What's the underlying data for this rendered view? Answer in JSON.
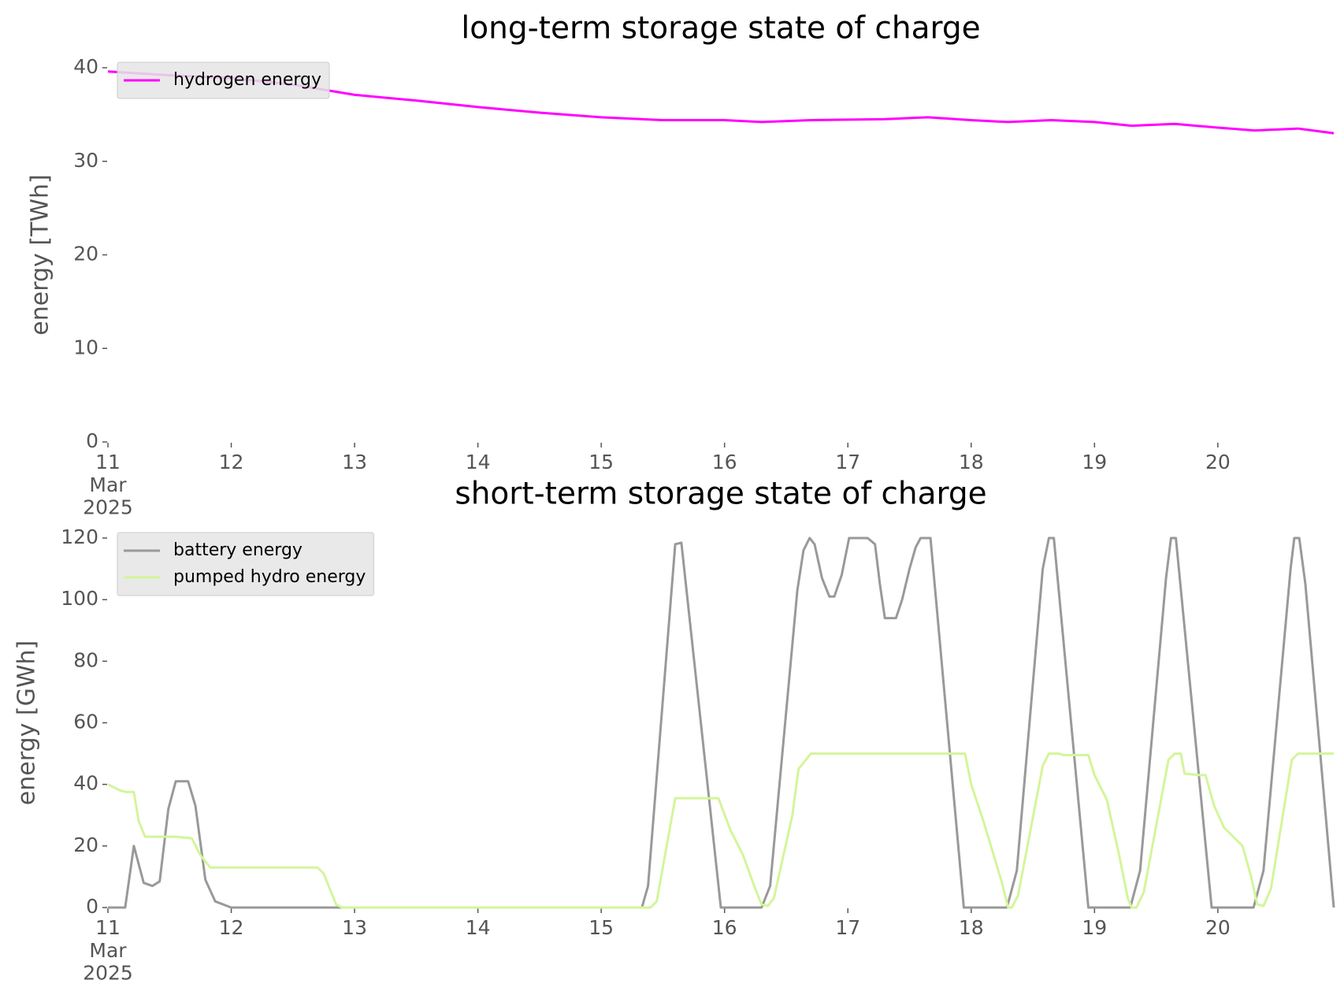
{
  "chart_data": [
    {
      "type": "line",
      "title": "long-term storage state of charge",
      "ylabel": "energy [TWh]",
      "xlim": [
        11,
        20.94
      ],
      "xticks": [
        {
          "value": 11,
          "label": "11\nMar\n2025"
        },
        12,
        13,
        14,
        15,
        16,
        17,
        18,
        19,
        20
      ],
      "ylim": [
        0,
        40
      ],
      "yticks": [
        0,
        10,
        20,
        30,
        40
      ],
      "grid": false,
      "legend": "upper left",
      "series": [
        {
          "name": "hydrogen energy",
          "color": "#ff00ff",
          "x": [
            11,
            11.5,
            12,
            12.5,
            13,
            13.5,
            14,
            14.5,
            15,
            15.5,
            16,
            16.3,
            16.7,
            17.3,
            17.65,
            18,
            18.3,
            18.65,
            19,
            19.3,
            19.65,
            20,
            20.3,
            20.65,
            20.94
          ],
          "values": [
            39.6,
            39.2,
            38.9,
            38.2,
            37.1,
            36.5,
            35.8,
            35.2,
            34.7,
            34.4,
            34.4,
            34.2,
            34.4,
            34.5,
            34.7,
            34.4,
            34.2,
            34.4,
            34.2,
            33.8,
            34.0,
            33.6,
            33.3,
            33.5,
            33.0
          ]
        }
      ]
    },
    {
      "type": "line",
      "title": "short-term storage state of charge",
      "ylabel": "energy [GWh]",
      "xlim": [
        11,
        20.94
      ],
      "xticks": [
        {
          "value": 11,
          "label": "11\nMar\n2025"
        },
        12,
        13,
        14,
        15,
        16,
        17,
        18,
        19,
        20
      ],
      "ylim": [
        0,
        120
      ],
      "yticks": [
        0,
        20,
        40,
        60,
        80,
        100,
        120
      ],
      "grid": false,
      "legend": "upper left",
      "series": [
        {
          "name": "battery energy",
          "color": "#999999",
          "x": [
            11,
            11.14,
            11.21,
            11.29,
            11.36,
            11.42,
            11.49,
            11.55,
            11.65,
            11.71,
            11.79,
            11.87,
            12,
            15.33,
            15.38,
            15.6,
            15.65,
            15.97,
            16.3,
            16.37,
            16.59,
            16.64,
            16.69,
            16.73,
            16.79,
            16.85,
            16.89,
            16.95,
            17.01,
            17.16,
            17.22,
            17.26,
            17.3,
            17.39,
            17.44,
            17.5,
            17.55,
            17.59,
            17.67,
            17.94,
            18.29,
            18.37,
            18.58,
            18.63,
            18.67,
            18.95,
            19.29,
            19.37,
            19.58,
            19.62,
            19.66,
            19.95,
            20.29,
            20.37,
            20.59,
            20.62,
            20.66,
            20.71,
            20.94
          ],
          "values": [
            0,
            0,
            20,
            8,
            7,
            8.5,
            32,
            41,
            41,
            33,
            9,
            2,
            0,
            0,
            7,
            118,
            118.5,
            0,
            0,
            7,
            103,
            116,
            120,
            118,
            107,
            101,
            101,
            108,
            120,
            120,
            118,
            105,
            94,
            94,
            100,
            110,
            117,
            120,
            120,
            0,
            0,
            12,
            110,
            120,
            120,
            0,
            0,
            12,
            107,
            120,
            120,
            0,
            0,
            12,
            110,
            120,
            120,
            105,
            0
          ]
        },
        {
          "name": "pumped hydro energy",
          "color": "#d4f59a",
          "x": [
            11,
            11.1,
            11.15,
            11.21,
            11.25,
            11.3,
            11.55,
            11.68,
            11.75,
            11.83,
            12.7,
            12.75,
            12.85,
            12.9,
            15.4,
            15.45,
            15.6,
            15.95,
            16.05,
            16.15,
            16.25,
            16.3,
            16.35,
            16.4,
            16.55,
            16.6,
            16.7,
            17.95,
            18,
            18.1,
            18.25,
            18.3,
            18.33,
            18.38,
            18.58,
            18.63,
            18.71,
            18.75,
            18.95,
            19,
            19.1,
            19.2,
            19.27,
            19.3,
            19.34,
            19.4,
            19.6,
            19.65,
            19.7,
            19.73,
            19.85,
            19.9,
            19.97,
            20.05,
            20.2,
            20.27,
            20.32,
            20.37,
            20.43,
            20.6,
            20.65,
            20.94
          ],
          "values": [
            40,
            38,
            37.5,
            37.5,
            28,
            23,
            23,
            22.5,
            17,
            13,
            13,
            11,
            1,
            0,
            0,
            2,
            35.5,
            35.5,
            25,
            17,
            6,
            1,
            0.5,
            3,
            30,
            45,
            50,
            50,
            40,
            28,
            8,
            0,
            0,
            4,
            46,
            50,
            50,
            49.5,
            49.5,
            43,
            35,
            17,
            3,
            0,
            0,
            5,
            48,
            50,
            50,
            43.5,
            43,
            43,
            33,
            26,
            20,
            10,
            1,
            0.5,
            6,
            48,
            50,
            50
          ]
        }
      ]
    }
  ]
}
